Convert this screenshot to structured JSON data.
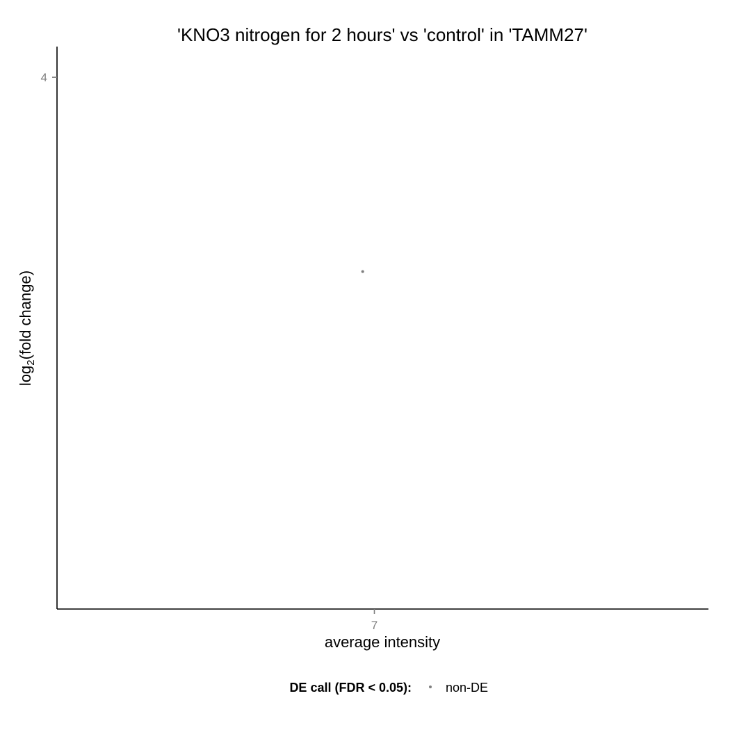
{
  "chart_data": {
    "type": "scatter",
    "title": "'KNO3 nitrogen for 2 hours' vs 'control' in 'TAMM27'",
    "xlabel": "average intensity",
    "ylabel_main": "log",
    "ylabel_sub": "2",
    "ylabel_rest": "(fold change)",
    "xlim": [
      5.1,
      9.0
    ],
    "ylim": [
      -1.2,
      4.3
    ],
    "x_ticks": [
      7
    ],
    "x_tick_labels": [
      "7"
    ],
    "y_ticks": [
      4
    ],
    "y_tick_labels": [
      "4"
    ],
    "grid": false,
    "legend_position": "bottom",
    "legend": {
      "title": "DE call (FDR < 0.05):",
      "entries": [
        {
          "label": "non-DE",
          "color": "#7f7f7f"
        }
      ]
    },
    "series": [
      {
        "name": "non-DE",
        "color": "#7f7f7f",
        "points": [
          {
            "x": 6.93,
            "y": 2.1
          }
        ]
      }
    ]
  }
}
